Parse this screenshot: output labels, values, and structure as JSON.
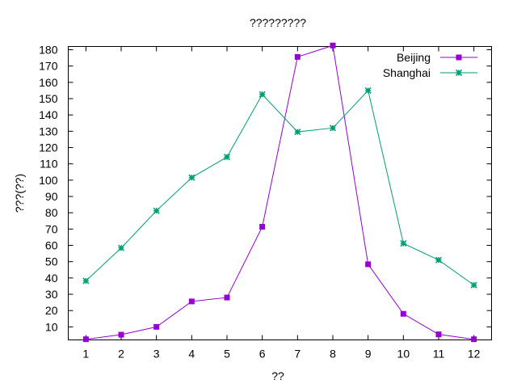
{
  "chart_data": {
    "type": "line",
    "title": "?????????",
    "xlabel": "??",
    "ylabel": "???(??)",
    "categories": [
      1,
      2,
      3,
      4,
      5,
      6,
      7,
      8,
      9,
      10,
      11,
      12
    ],
    "xlim": [
      0.5,
      12.5
    ],
    "ylim": [
      2,
      182
    ],
    "yticks": [
      10,
      20,
      30,
      40,
      50,
      60,
      70,
      80,
      90,
      100,
      110,
      120,
      130,
      140,
      150,
      160,
      170,
      180
    ],
    "grid": false,
    "legend_position": "top-right",
    "series": [
      {
        "name": "Beijing",
        "color": "#9400d3",
        "marker": "square",
        "values": [
          2.4,
          5.2,
          10.0,
          25.6,
          28.0,
          71.4,
          175.6,
          182.6,
          48.4,
          18.0,
          5.4,
          2.4
        ]
      },
      {
        "name": "Shanghai",
        "color": "#009e73",
        "marker": "star",
        "values": [
          38.2,
          58.4,
          81.2,
          101.6,
          114.2,
          152.6,
          129.6,
          132.0,
          155.0,
          61.2,
          51.0,
          35.6
        ]
      }
    ]
  }
}
